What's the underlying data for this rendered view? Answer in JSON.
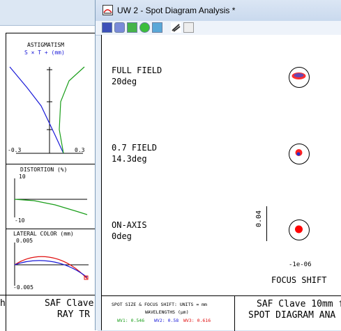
{
  "background_window": {
    "astig": {
      "title": "ASTIGMATISM",
      "legend": "S × T + (mm)",
      "xmin": "-0.3",
      "xmax": "0.3"
    },
    "distortion": {
      "title": "DISTORTION (%)",
      "top": "10",
      "bottom": "-10"
    },
    "lateral": {
      "title": "LATERAL COLOR (mm)",
      "top": "0.005",
      "bottom": "-0.005"
    },
    "title_block": {
      "line1": "SAF Clave",
      "line2": "RAY TR",
      "left_frag": "h"
    }
  },
  "window": {
    "title": "UW 2 - Spot Diagram Analysis *"
  },
  "toolbar": {
    "buttons": [
      {
        "name": "spot-grid-icon",
        "color": "#3b4fb8"
      },
      {
        "name": "spot-pattern-icon",
        "color": "#7a8bd9"
      },
      {
        "name": "spot-diamond-icon",
        "color": "#46b44a"
      },
      {
        "name": "spot-circle-icon",
        "color": "#3cbe3c"
      },
      {
        "name": "spot-wave-icon",
        "color": "#5aa8d8"
      },
      {
        "name": "ray-trace-icon",
        "color": "#555555"
      },
      {
        "name": "print-icon",
        "color": "#dddddd"
      }
    ]
  },
  "fields": [
    {
      "name": "FULL FIELD",
      "angle": "20deg"
    },
    {
      "name": "0.7 FIELD",
      "angle": "14.3deg"
    },
    {
      "name": "ON-AXIS",
      "angle": "0deg"
    }
  ],
  "scale": {
    "vertical": "0.04",
    "horizontal": "-1e-06"
  },
  "focus_label": "FOCUS SHIFT",
  "footer": {
    "units": "SPOT SIZE & FOCUS SHIFT: UNITS = mm",
    "wavelengths_label": "WAVELENGTHS (µm)",
    "wl1": "WV1: 0.546",
    "wl2": "WV2: 0.58",
    "wl3": "WV3: 0.616",
    "title1": "SAF Clave 10mm f",
    "title2": "SPOT DIAGRAM ANA"
  },
  "colors": {
    "wl1": "#1a9e1a",
    "wl2": "#1a1ad8",
    "wl3": "#e01010",
    "spot": "#ff0000"
  }
}
